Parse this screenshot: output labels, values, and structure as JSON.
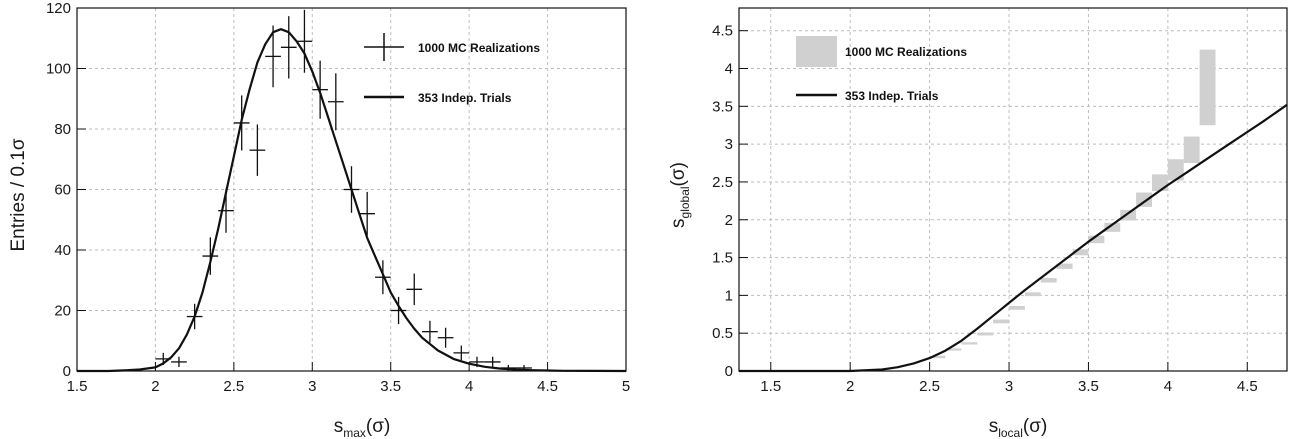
{
  "chart_data": [
    {
      "type": "scatter",
      "xlabel": {
        "main": "s",
        "sub": "max",
        "tail": "(σ)"
      },
      "ylabel": "Entries / 0.1σ",
      "xlim": [
        1.5,
        5
      ],
      "ylim": [
        0,
        120
      ],
      "xticks": [
        1.5,
        2,
        2.5,
        3,
        3.5,
        4,
        4.5,
        5
      ],
      "yticks": [
        0,
        20,
        40,
        60,
        80,
        100,
        120
      ],
      "xtick_labels": [
        "1.5",
        "2",
        "2.5",
        "3",
        "3.5",
        "4",
        "4.5",
        "5"
      ],
      "ytick_labels": [
        "0",
        "20",
        "40",
        "60",
        "80",
        "100",
        "120"
      ],
      "grid": true,
      "legend": {
        "placement": "top-right",
        "entries": [
          "1000 MC Realizations",
          "353 Indep. Trials"
        ]
      },
      "series": [
        {
          "name": "1000 MC Realizations",
          "style": "errorbar",
          "points": [
            {
              "x": 2.05,
              "y": 4,
              "err": 2
            },
            {
              "x": 2.15,
              "y": 3,
              "err": 1.7
            },
            {
              "x": 2.25,
              "y": 18,
              "err": 4.2
            },
            {
              "x": 2.35,
              "y": 38,
              "err": 6.2
            },
            {
              "x": 2.45,
              "y": 53,
              "err": 7.3
            },
            {
              "x": 2.55,
              "y": 82,
              "err": 9.1
            },
            {
              "x": 2.65,
              "y": 73,
              "err": 8.5
            },
            {
              "x": 2.75,
              "y": 104,
              "err": 10.2
            },
            {
              "x": 2.85,
              "y": 107,
              "err": 10.3
            },
            {
              "x": 2.95,
              "y": 109,
              "err": 10.4
            },
            {
              "x": 3.05,
              "y": 93,
              "err": 9.6
            },
            {
              "x": 3.15,
              "y": 89,
              "err": 9.4
            },
            {
              "x": 3.25,
              "y": 60,
              "err": 7.7
            },
            {
              "x": 3.35,
              "y": 52,
              "err": 7.2
            },
            {
              "x": 3.45,
              "y": 31,
              "err": 5.6
            },
            {
              "x": 3.55,
              "y": 20,
              "err": 4.5
            },
            {
              "x": 3.65,
              "y": 27,
              "err": 5.2
            },
            {
              "x": 3.75,
              "y": 13,
              "err": 3.6
            },
            {
              "x": 3.85,
              "y": 11,
              "err": 3.3
            },
            {
              "x": 3.95,
              "y": 6,
              "err": 2.4
            },
            {
              "x": 4.05,
              "y": 3,
              "err": 1.7
            },
            {
              "x": 4.15,
              "y": 3,
              "err": 1.7
            },
            {
              "x": 4.25,
              "y": 1,
              "err": 1
            },
            {
              "x": 4.35,
              "y": 1,
              "err": 1
            }
          ]
        },
        {
          "name": "353 Indep. Trials",
          "style": "line",
          "x": [
            1.5,
            1.7,
            1.8,
            1.9,
            2.0,
            2.05,
            2.1,
            2.15,
            2.2,
            2.25,
            2.3,
            2.35,
            2.4,
            2.45,
            2.5,
            2.55,
            2.6,
            2.65,
            2.7,
            2.75,
            2.8,
            2.85,
            2.9,
            2.95,
            3.0,
            3.05,
            3.1,
            3.15,
            3.2,
            3.25,
            3.3,
            3.35,
            3.4,
            3.45,
            3.5,
            3.55,
            3.6,
            3.65,
            3.7,
            3.8,
            3.9,
            4.0,
            4.1,
            4.2,
            4.3,
            4.4,
            4.5,
            4.6,
            4.8,
            5.0
          ],
          "y": [
            0,
            0,
            0.2,
            0.5,
            1.2,
            2.5,
            4.5,
            7.5,
            12,
            18,
            26,
            36,
            47,
            59,
            71,
            83,
            93,
            102,
            108,
            112,
            113,
            112,
            109,
            105,
            99,
            92,
            84,
            76,
            68,
            60,
            52,
            44,
            38,
            32,
            26,
            21.5,
            17.5,
            14,
            11,
            6.8,
            4,
            2.4,
            1.4,
            0.8,
            0.45,
            0.25,
            0.15,
            0.08,
            0.03,
            0
          ]
        }
      ]
    },
    {
      "type": "line",
      "xlabel": {
        "main": "s",
        "sub": "local",
        "tail": "(σ)"
      },
      "ylabel": {
        "main": "s",
        "sub": "global",
        "tail": "(σ)"
      },
      "xlim": [
        1.3,
        4.75
      ],
      "ylim": [
        0,
        4.8
      ],
      "xticks": [
        1.5,
        2,
        2.5,
        3,
        3.5,
        4,
        4.5
      ],
      "yticks": [
        0,
        0.5,
        1,
        1.5,
        2,
        2.5,
        3,
        3.5,
        4,
        4.5
      ],
      "xtick_labels": [
        "1.5",
        "2",
        "2.5",
        "3",
        "3.5",
        "4",
        "4.5"
      ],
      "ytick_labels": [
        "0",
        "0.5",
        "1",
        "1.5",
        "2",
        "2.5",
        "3",
        "3.5",
        "4",
        "4.5"
      ],
      "grid": true,
      "legend": {
        "placement": "top-left",
        "entries": [
          "1000 MC Realizations",
          "353 Indep. Trials"
        ]
      },
      "series": [
        {
          "name": "1000 MC Realizations",
          "style": "band",
          "bins": [
            {
              "x0": 2.5,
              "x1": 2.6,
              "y0": 0.17,
              "y1": 0.2
            },
            {
              "x0": 2.6,
              "x1": 2.7,
              "y0": 0.27,
              "y1": 0.3
            },
            {
              "x0": 2.7,
              "x1": 2.8,
              "y0": 0.35,
              "y1": 0.38
            },
            {
              "x0": 2.8,
              "x1": 2.9,
              "y0": 0.47,
              "y1": 0.51
            },
            {
              "x0": 2.9,
              "x1": 3.0,
              "y0": 0.63,
              "y1": 0.68
            },
            {
              "x0": 3.0,
              "x1": 3.1,
              "y0": 0.81,
              "y1": 0.86
            },
            {
              "x0": 3.1,
              "x1": 3.2,
              "y0": 0.99,
              "y1": 1.04
            },
            {
              "x0": 3.2,
              "x1": 3.3,
              "y0": 1.17,
              "y1": 1.23
            },
            {
              "x0": 3.3,
              "x1": 3.4,
              "y0": 1.35,
              "y1": 1.42
            },
            {
              "x0": 3.4,
              "x1": 3.5,
              "y0": 1.53,
              "y1": 1.61
            },
            {
              "x0": 3.5,
              "x1": 3.6,
              "y0": 1.69,
              "y1": 1.79
            },
            {
              "x0": 3.6,
              "x1": 3.7,
              "y0": 1.84,
              "y1": 1.96
            },
            {
              "x0": 3.7,
              "x1": 3.8,
              "y0": 1.99,
              "y1": 2.13
            },
            {
              "x0": 3.8,
              "x1": 3.9,
              "y0": 2.17,
              "y1": 2.36
            },
            {
              "x0": 3.9,
              "x1": 4.0,
              "y0": 2.38,
              "y1": 2.6
            },
            {
              "x0": 4.0,
              "x1": 4.1,
              "y0": 2.52,
              "y1": 2.8
            },
            {
              "x0": 4.1,
              "x1": 4.2,
              "y0": 2.75,
              "y1": 3.1
            },
            {
              "x0": 4.2,
              "x1": 4.3,
              "y0": 3.25,
              "y1": 4.25
            }
          ]
        },
        {
          "name": "353 Indep. Trials",
          "style": "line",
          "x": [
            1.3,
            1.8,
            2.0,
            2.1,
            2.2,
            2.3,
            2.4,
            2.5,
            2.6,
            2.7,
            2.8,
            2.9,
            3.0,
            3.1,
            3.2,
            3.3,
            3.4,
            3.5,
            3.6,
            3.7,
            3.8,
            3.9,
            4.0,
            4.1,
            4.2,
            4.3,
            4.4,
            4.5,
            4.6,
            4.75
          ],
          "y": [
            0,
            0,
            0,
            0.01,
            0.02,
            0.05,
            0.1,
            0.17,
            0.27,
            0.4,
            0.56,
            0.73,
            0.9,
            1.07,
            1.23,
            1.39,
            1.55,
            1.71,
            1.86,
            2.01,
            2.16,
            2.31,
            2.46,
            2.6,
            2.74,
            2.88,
            3.02,
            3.16,
            3.3,
            3.52
          ]
        }
      ]
    }
  ],
  "colors": {
    "line": "#111111",
    "band": "#d0d0d0",
    "grid": "#bdbdbd",
    "frame": "#111111"
  }
}
